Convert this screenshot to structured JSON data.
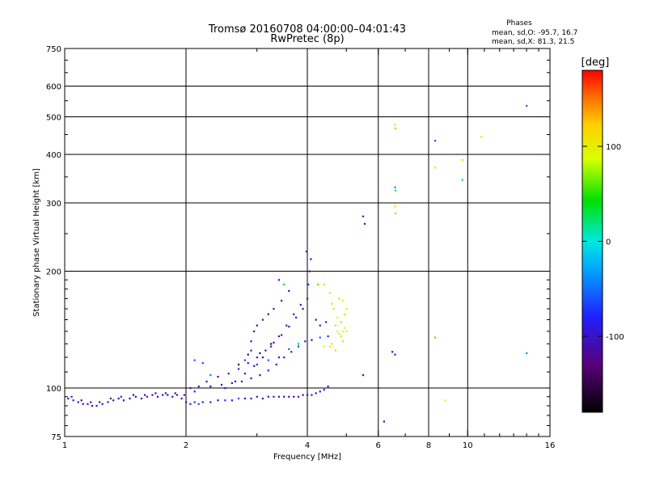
{
  "chart_data": {
    "type": "scatter",
    "title": "Tromsø 20160708 04:00:00–04:01:43",
    "subtitle": "RwPretec (8p)",
    "xlabel": "Frequency [MHz]",
    "ylabel": "Stationary phase Virtual Height [km]",
    "x_scale": "log",
    "y_scale": "log",
    "xlim": [
      1,
      16
    ],
    "ylim": [
      75,
      750
    ],
    "x_ticks": [
      {
        "value": 1,
        "label": "1"
      },
      {
        "value": 2,
        "label": "2"
      },
      {
        "value": 4,
        "label": "4"
      },
      {
        "value": 6,
        "label": "6"
      },
      {
        "value": 8,
        "label": "8"
      },
      {
        "value": 10,
        "label": "10"
      },
      {
        "value": 16,
        "label": "16"
      }
    ],
    "y_ticks": [
      {
        "value": 75,
        "label": "75"
      },
      {
        "value": 100,
        "label": "100"
      },
      {
        "value": 200,
        "label": "200"
      },
      {
        "value": 300,
        "label": "300"
      },
      {
        "value": 400,
        "label": "400"
      },
      {
        "value": 500,
        "label": "500"
      },
      {
        "value": 600,
        "label": "600"
      },
      {
        "value": 750,
        "label": "750"
      }
    ],
    "x_grid": [
      2,
      4,
      6,
      8,
      10
    ],
    "y_grid": [
      100,
      200,
      300,
      400,
      500,
      600
    ],
    "grid": true,
    "stats": {
      "heading": "Phases",
      "line_o": "mean, sd,O: -95.7, 16.7",
      "line_x": "mean, sd,X: 81.3, 21.5"
    },
    "colorbar": {
      "label": "[deg]",
      "range": [
        -180,
        180
      ],
      "ticks": [
        {
          "value": 100,
          "label": "100"
        },
        {
          "value": 0,
          "label": "0"
        },
        {
          "value": -100,
          "label": "-100"
        }
      ]
    },
    "points": [
      [
        1.02,
        94,
        -100
      ],
      [
        1.05,
        93,
        -95
      ],
      [
        1.08,
        92,
        -110
      ],
      [
        1.11,
        91,
        -100
      ],
      [
        1.14,
        91,
        -90
      ],
      [
        1.17,
        90,
        -120
      ],
      [
        1.2,
        90,
        -100
      ],
      [
        1.24,
        91,
        -95
      ],
      [
        1.28,
        92,
        -85
      ],
      [
        1.32,
        93,
        -105
      ],
      [
        1.36,
        94,
        -100
      ],
      [
        1.4,
        93,
        -120
      ],
      [
        1.45,
        94,
        -95
      ],
      [
        1.5,
        95,
        -100
      ],
      [
        1.55,
        94,
        -110
      ],
      [
        1.6,
        95,
        -90
      ],
      [
        1.65,
        96,
        -100
      ],
      [
        1.7,
        95,
        -125
      ],
      [
        1.75,
        96,
        -95
      ],
      [
        1.8,
        96,
        -100
      ],
      [
        1.85,
        95,
        -110
      ],
      [
        1.9,
        96,
        -100
      ],
      [
        1.95,
        94,
        -120
      ],
      [
        1.04,
        95,
        -85
      ],
      [
        1.1,
        93,
        -125
      ],
      [
        1.16,
        92,
        -95
      ],
      [
        1.22,
        92,
        -105
      ],
      [
        1.3,
        94,
        -115
      ],
      [
        1.38,
        95,
        -90
      ],
      [
        1.48,
        96,
        -130
      ],
      [
        1.58,
        96,
        -100
      ],
      [
        1.68,
        97,
        -110
      ],
      [
        1.78,
        97,
        -95
      ],
      [
        1.88,
        97,
        -105
      ],
      [
        1.98,
        96,
        -100
      ],
      [
        2.0,
        92,
        -100
      ],
      [
        2.05,
        91,
        -90
      ],
      [
        2.1,
        92,
        -70
      ],
      [
        2.15,
        91,
        -60
      ],
      [
        2.2,
        92,
        -95
      ],
      [
        2.3,
        92,
        -100
      ],
      [
        2.4,
        93,
        -110
      ],
      [
        2.5,
        93,
        -75
      ],
      [
        2.6,
        93,
        -100
      ],
      [
        2.7,
        94,
        -60
      ],
      [
        2.8,
        94,
        -95
      ],
      [
        2.9,
        94,
        -100
      ],
      [
        3.0,
        95,
        -90
      ],
      [
        3.1,
        94,
        -105
      ],
      [
        3.2,
        95,
        -120
      ],
      [
        3.3,
        95,
        -100
      ],
      [
        3.4,
        95,
        -95
      ],
      [
        3.5,
        95,
        -110
      ],
      [
        3.6,
        95,
        -100
      ],
      [
        3.7,
        95,
        -120
      ],
      [
        3.8,
        95,
        -100
      ],
      [
        3.9,
        96,
        -100
      ],
      [
        4.0,
        96,
        -95
      ],
      [
        4.1,
        96,
        -100
      ],
      [
        4.2,
        97,
        -105
      ],
      [
        4.3,
        98,
        -100
      ],
      [
        4.4,
        99,
        -90
      ],
      [
        4.5,
        101,
        -100
      ],
      [
        2.05,
        100,
        -110
      ],
      [
        2.15,
        101,
        -100
      ],
      [
        2.3,
        101,
        -120
      ],
      [
        2.45,
        102,
        -95
      ],
      [
        2.6,
        103,
        -100
      ],
      [
        2.75,
        104,
        -110
      ],
      [
        2.9,
        106,
        -100
      ],
      [
        3.05,
        108,
        -120
      ],
      [
        3.2,
        111,
        -95
      ],
      [
        3.35,
        115,
        -100
      ],
      [
        3.5,
        120,
        -80
      ],
      [
        3.65,
        124,
        -100
      ],
      [
        3.8,
        128,
        -65
      ],
      [
        3.95,
        132,
        -100
      ],
      [
        4.1,
        133,
        -110
      ],
      [
        4.3,
        135,
        -60
      ],
      [
        4.5,
        136,
        -95
      ],
      [
        2.1,
        98,
        -95
      ],
      [
        2.25,
        104,
        -100
      ],
      [
        2.4,
        107,
        -125
      ],
      [
        2.55,
        109,
        -100
      ],
      [
        2.7,
        112,
        -95
      ],
      [
        2.85,
        116,
        -110
      ],
      [
        3.0,
        120,
        -100
      ],
      [
        3.15,
        125,
        -100
      ],
      [
        3.3,
        131,
        -115
      ],
      [
        3.45,
        137,
        -100
      ],
      [
        3.6,
        144,
        -95
      ],
      [
        3.75,
        152,
        -100
      ],
      [
        3.9,
        160,
        -110
      ],
      [
        4.0,
        170,
        -100
      ],
      [
        4.02,
        185,
        -90
      ],
      [
        4.05,
        200,
        -100
      ],
      [
        4.08,
        215,
        -110
      ],
      [
        3.98,
        225,
        -100
      ],
      [
        2.5,
        100,
        -100
      ],
      [
        2.65,
        104,
        -120
      ],
      [
        2.8,
        109,
        -100
      ],
      [
        2.95,
        114,
        -95
      ],
      [
        3.1,
        120,
        -105
      ],
      [
        3.25,
        128,
        -100
      ],
      [
        3.4,
        136,
        -115
      ],
      [
        3.55,
        145,
        -100
      ],
      [
        3.7,
        155,
        -95
      ],
      [
        3.85,
        164,
        -100
      ],
      [
        4.2,
        150,
        -100
      ],
      [
        4.3,
        145,
        -110
      ],
      [
        4.45,
        148,
        -100
      ],
      [
        3.4,
        190,
        -100
      ],
      [
        3.5,
        185,
        40
      ],
      [
        3.6,
        178,
        -110
      ],
      [
        3.45,
        168,
        -100
      ],
      [
        3.3,
        160,
        -95
      ],
      [
        3.2,
        155,
        -120
      ],
      [
        3.1,
        150,
        -100
      ],
      [
        3.0,
        145,
        -130
      ],
      [
        2.95,
        140,
        -100
      ],
      [
        2.9,
        132,
        -110
      ],
      [
        2.8,
        118,
        -60
      ],
      [
        2.9,
        125,
        -100
      ],
      [
        3.0,
        115,
        -70
      ],
      [
        3.2,
        118,
        -55
      ],
      [
        3.4,
        120,
        -80
      ],
      [
        3.6,
        126,
        -55
      ],
      [
        3.8,
        130,
        40
      ],
      [
        2.7,
        115,
        -150
      ],
      [
        2.85,
        122,
        -140
      ],
      [
        3.05,
        123,
        -150
      ],
      [
        3.25,
        130,
        -145
      ],
      [
        2.1,
        118,
        -60
      ],
      [
        2.3,
        108,
        -50
      ],
      [
        2.2,
        116,
        -70
      ],
      [
        4.25,
        185,
        60
      ],
      [
        4.4,
        185,
        80
      ],
      [
        4.6,
        165,
        80
      ],
      [
        4.65,
        160,
        95
      ],
      [
        4.7,
        145,
        80
      ],
      [
        4.75,
        140,
        90
      ],
      [
        4.8,
        138,
        85
      ],
      [
        4.85,
        136,
        80
      ],
      [
        4.9,
        140,
        90
      ],
      [
        4.95,
        143,
        85
      ],
      [
        4.85,
        148,
        75
      ],
      [
        4.75,
        152,
        90
      ],
      [
        4.9,
        132,
        80
      ],
      [
        5.0,
        140,
        95
      ],
      [
        4.95,
        155,
        80
      ],
      [
        4.55,
        128,
        85
      ],
      [
        4.6,
        130,
        95
      ],
      [
        4.7,
        125,
        80
      ],
      [
        4.4,
        128,
        90
      ],
      [
        4.8,
        170,
        75
      ],
      [
        4.9,
        168,
        85
      ],
      [
        4.55,
        176,
        80
      ],
      [
        5.0,
        160,
        95
      ],
      [
        5.5,
        277,
        -95
      ],
      [
        5.55,
        265,
        -100
      ],
      [
        5.5,
        108,
        -110
      ],
      [
        6.2,
        82,
        -120
      ],
      [
        6.6,
        477,
        110
      ],
      [
        6.62,
        467,
        130
      ],
      [
        6.6,
        329,
        -40
      ],
      [
        6.62,
        323,
        20
      ],
      [
        6.6,
        294,
        120
      ],
      [
        6.62,
        282,
        130
      ],
      [
        6.5,
        124,
        -110
      ],
      [
        6.6,
        122,
        -100
      ],
      [
        8.3,
        434,
        -60
      ],
      [
        8.3,
        370,
        80
      ],
      [
        8.3,
        135,
        140
      ],
      [
        8.8,
        93,
        90
      ],
      [
        9.7,
        387,
        80
      ],
      [
        9.7,
        344,
        30
      ],
      [
        10.8,
        444,
        90
      ],
      [
        14.0,
        534,
        -60
      ],
      [
        14.0,
        123,
        -40
      ]
    ]
  }
}
